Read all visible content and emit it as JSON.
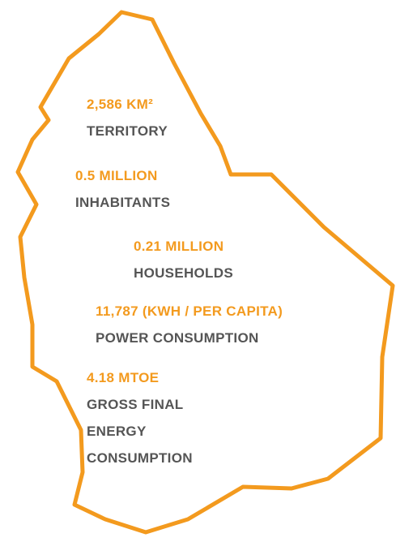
{
  "stats": [
    {
      "value": "2,586 KM²",
      "label": "TERRITORY"
    },
    {
      "value": "0.5 MILLION",
      "label": "INHABITANTS"
    },
    {
      "value": "0.21 MILLION",
      "label": "HOUSEHOLDS"
    },
    {
      "value": "11,787 (KWH / PER CAPITA)",
      "label": "POWER CONSUMPTION"
    },
    {
      "value": "4.18 MTOE",
      "label": "GROSS FINAL ENERGY CONSUMPTION"
    }
  ]
}
